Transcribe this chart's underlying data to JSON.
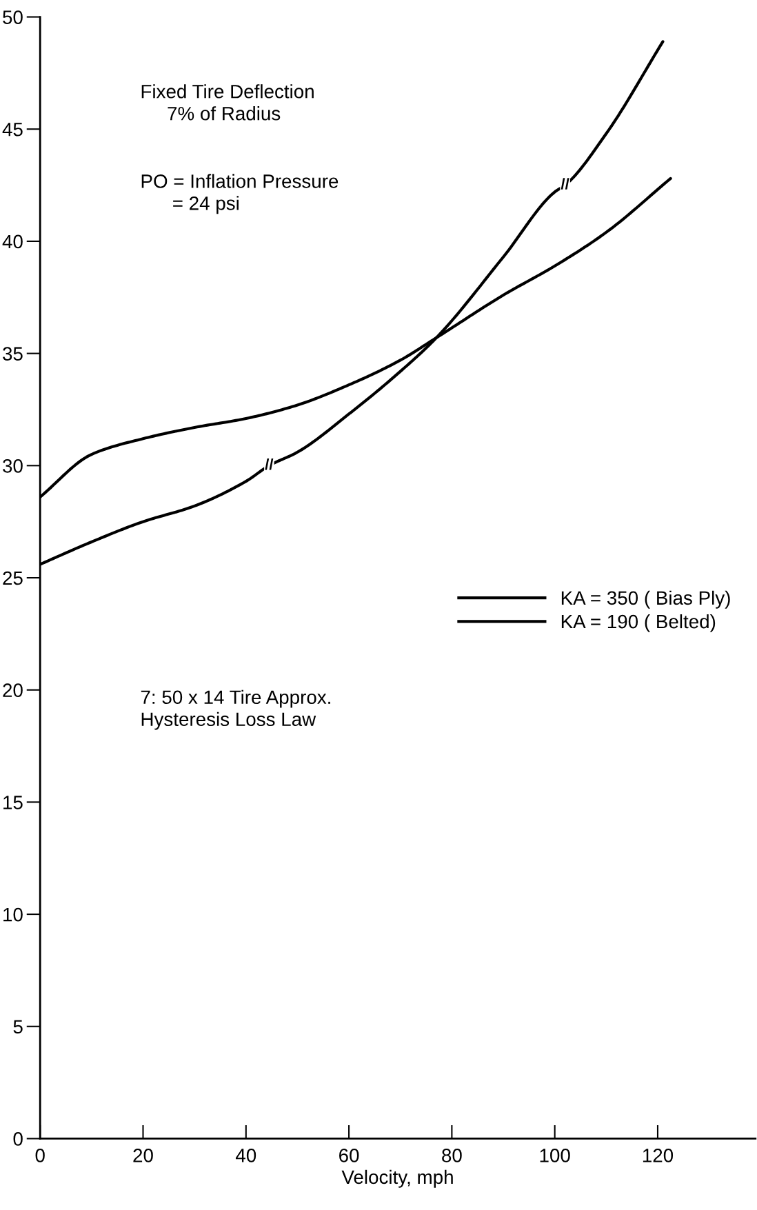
{
  "chart_data": {
    "type": "line",
    "xlabel": "Velocity, mph",
    "xlim": [
      0,
      139
    ],
    "xticks": [
      0,
      20,
      40,
      60,
      80,
      100,
      120
    ],
    "ylim": [
      0,
      50
    ],
    "yticks": [
      0,
      5,
      10,
      15,
      20,
      25,
      30,
      35,
      40,
      45,
      50
    ],
    "grid": false,
    "legend": "right",
    "marker": "none",
    "line_style": "solid",
    "series": [
      {
        "name": "KA = 350 ( Bias Ply)",
        "color": "#000000",
        "x": [
          0,
          10,
          20,
          30,
          40,
          50,
          60,
          70,
          77,
          90,
          100,
          110,
          122.5
        ],
        "values": [
          28.6,
          30.5,
          31.2,
          31.7,
          32.1,
          32.7,
          33.6,
          34.7,
          35.7,
          37.6,
          38.9,
          40.4,
          42.8
        ]
      },
      {
        "name": "KA = 190 ( Belted)",
        "color": "#000000",
        "x": [
          0,
          10,
          20,
          30,
          40,
          44.5,
          50,
          60,
          70,
          77,
          90,
          100,
          102,
          110,
          121
        ],
        "values": [
          25.6,
          26.6,
          27.5,
          28.2,
          29.3,
          30.0,
          30.6,
          32.3,
          34.2,
          35.7,
          39.3,
          42.2,
          42.5,
          44.8,
          48.9
        ]
      }
    ],
    "annotations": [
      "Fixed Tire Deflection\n     7% of Radius",
      "PO = Inflation Pressure\n      = 24 psi",
      "7: 50 x 14 Tire Approx.\nHysteresis Loss Law",
      {
        "text": "//",
        "x": 44.5,
        "y": 30.0
      },
      {
        "text": "//",
        "x": 102,
        "y": 42.5
      }
    ]
  }
}
